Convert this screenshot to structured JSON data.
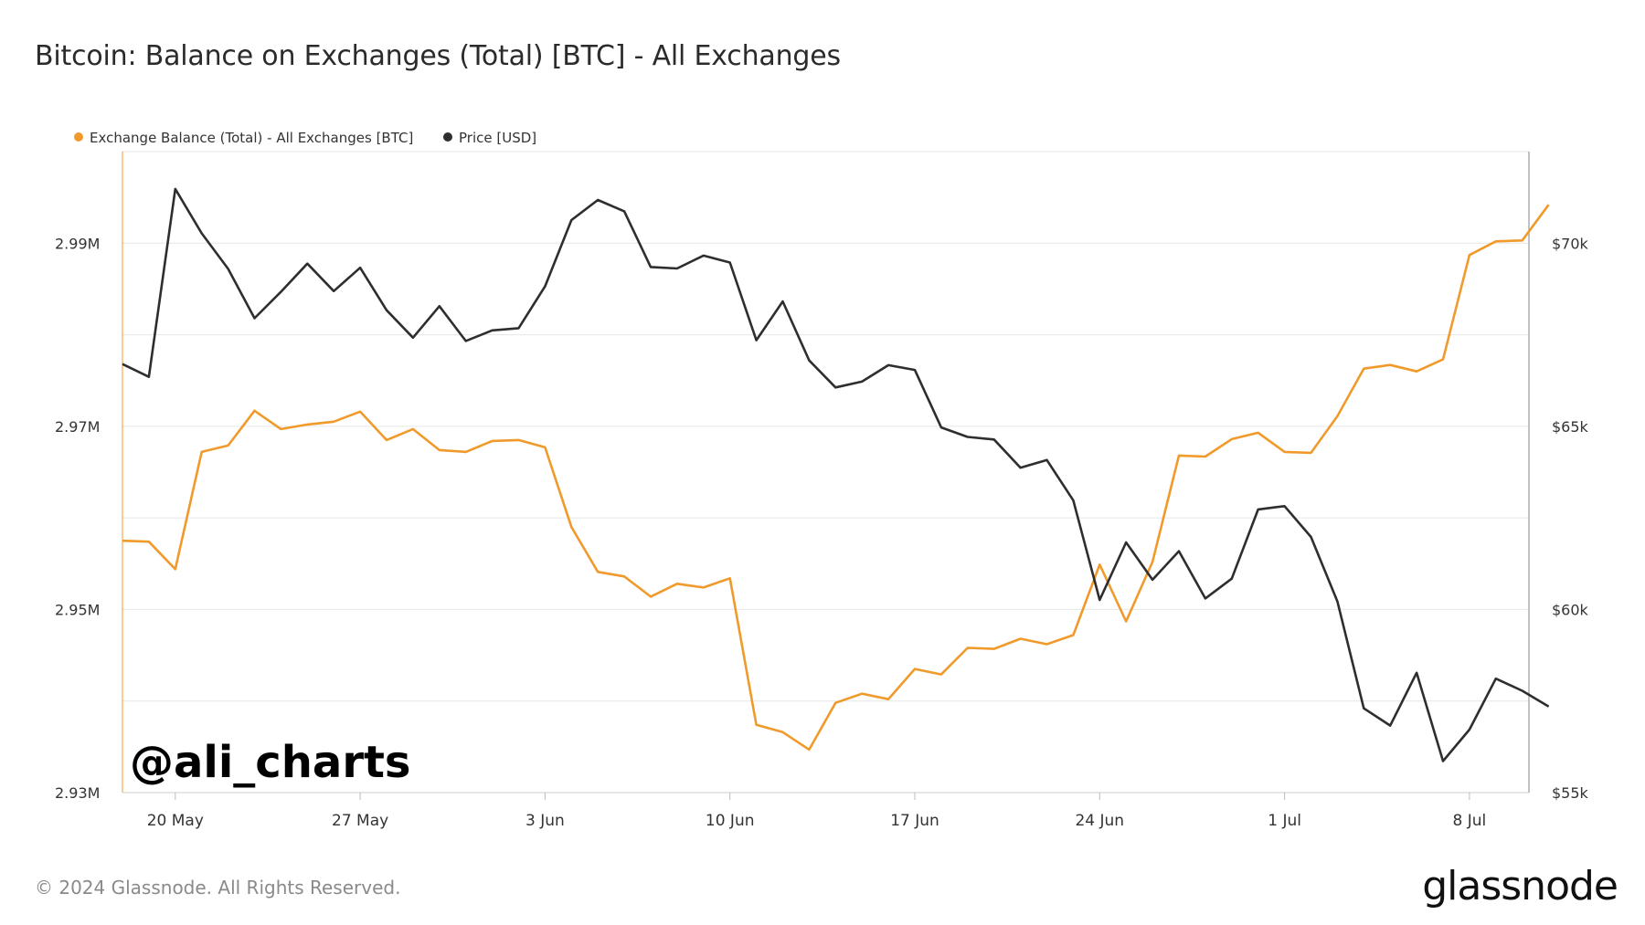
{
  "title": "Bitcoin: Balance on Exchanges (Total) [BTC] - All Exchanges",
  "footer": "© 2024 Glassnode. All Rights Reserved.",
  "brand": "glassnode",
  "watermark": "@ali_charts",
  "colors": {
    "balance": "#f09a2c",
    "price": "#2e2e2e",
    "grid": "#e6e6e6",
    "axis": "#9a9a9a"
  },
  "chart_data": {
    "type": "line",
    "title": "Bitcoin: Balance on Exchanges (Total) [BTC] - All Exchanges",
    "legend_position": "top-left",
    "grid": true,
    "x": [
      "2024-05-18",
      "2024-05-19",
      "2024-05-20",
      "2024-05-21",
      "2024-05-22",
      "2024-05-23",
      "2024-05-24",
      "2024-05-25",
      "2024-05-26",
      "2024-05-27",
      "2024-05-28",
      "2024-05-29",
      "2024-05-30",
      "2024-05-31",
      "2024-06-01",
      "2024-06-02",
      "2024-06-03",
      "2024-06-04",
      "2024-06-05",
      "2024-06-06",
      "2024-06-07",
      "2024-06-08",
      "2024-06-09",
      "2024-06-10",
      "2024-06-11",
      "2024-06-12",
      "2024-06-13",
      "2024-06-14",
      "2024-06-15",
      "2024-06-16",
      "2024-06-17",
      "2024-06-18",
      "2024-06-19",
      "2024-06-20",
      "2024-06-21",
      "2024-06-22",
      "2024-06-23",
      "2024-06-24",
      "2024-06-25",
      "2024-06-26",
      "2024-06-27",
      "2024-06-28",
      "2024-06-29",
      "2024-06-30",
      "2024-07-01",
      "2024-07-02",
      "2024-07-03",
      "2024-07-04",
      "2024-07-05",
      "2024-07-06",
      "2024-07-07",
      "2024-07-08",
      "2024-07-09",
      "2024-07-10",
      "2024-07-11"
    ],
    "x_ticks": [
      "20 May",
      "27 May",
      "3 Jun",
      "10 Jun",
      "17 Jun",
      "24 Jun",
      "1 Jul",
      "8 Jul"
    ],
    "x_tick_dates": [
      "2024-05-20",
      "2024-05-27",
      "2024-06-03",
      "2024-06-10",
      "2024-06-17",
      "2024-06-24",
      "2024-07-01",
      "2024-07-08"
    ],
    "y_left": {
      "ticks": [
        "2.93M",
        "2.95M",
        "2.97M",
        "2.99M"
      ],
      "tick_values": [
        2930000,
        2950000,
        2970000,
        2990000
      ],
      "range": [
        2930000,
        3000000
      ]
    },
    "y_right": {
      "ticks": [
        "$55k",
        "$60k",
        "$65k",
        "$70k"
      ],
      "tick_values": [
        55000,
        60000,
        65000,
        70000
      ],
      "range": [
        55000,
        72500
      ]
    },
    "series": [
      {
        "name": "Exchange Balance (Total) - All Exchanges [BTC]",
        "axis": "left",
        "color": "#f09a2c",
        "values": [
          2957500,
          2957400,
          2954400,
          2967200,
          2967900,
          2971700,
          2969700,
          2970200,
          2970500,
          2971600,
          2968500,
          2969700,
          2967400,
          2967200,
          2968400,
          2968500,
          2967700,
          2959000,
          2954100,
          2953600,
          2951400,
          2952800,
          2952400,
          2953400,
          2937400,
          2936600,
          2934700,
          2939800,
          2940800,
          2940200,
          2943500,
          2942900,
          2945800,
          2945700,
          2946800,
          2946200,
          2947200,
          2954900,
          2948700,
          2955200,
          2966800,
          2966700,
          2968600,
          2969300,
          2967200,
          2967100,
          2971100,
          2976300,
          2976700,
          2976000,
          2977300,
          2988700,
          2990200,
          2990300,
          2994200
        ]
      },
      {
        "name": "Price [USD]",
        "axis": "right",
        "color": "#2e2e2e",
        "values": [
          66700,
          66350,
          71480,
          70270,
          69300,
          67950,
          68670,
          69440,
          68690,
          69330,
          68170,
          67420,
          68280,
          67330,
          67620,
          67680,
          68820,
          70630,
          71180,
          70870,
          69350,
          69310,
          69660,
          69470,
          67350,
          68410,
          66800,
          66060,
          66220,
          66670,
          66540,
          64970,
          64710,
          64640,
          63870,
          64080,
          62980,
          60260,
          61830,
          60810,
          61590,
          60300,
          60840,
          62730,
          62820,
          61980,
          60220,
          57300,
          56830,
          58270,
          55860,
          56720,
          58110,
          57780,
          57350
        ]
      }
    ]
  }
}
